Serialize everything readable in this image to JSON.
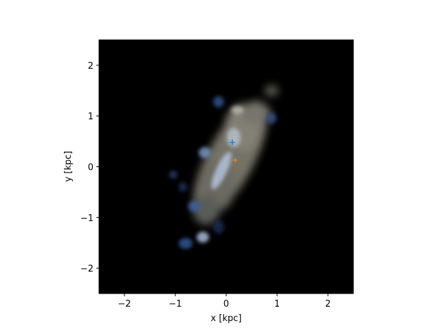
{
  "chart_data": {
    "type": "scatter",
    "title": "",
    "xlabel": "x [kpc]",
    "ylabel": "y [kpc]",
    "xlim": [
      -2.5,
      2.5
    ],
    "ylim": [
      -2.5,
      2.5
    ],
    "x_ticks": [
      -2,
      -1,
      0,
      1,
      2
    ],
    "y_ticks": [
      -2,
      -1,
      0,
      1,
      2
    ],
    "x_tick_labels": [
      "−2",
      "−1",
      "0",
      "1",
      "2"
    ],
    "y_tick_labels": [
      "−2",
      "−1",
      "0",
      "1",
      "2"
    ],
    "grid": false,
    "background_color": "#000000",
    "image": "galaxy gas/star density map (false-color RGB)",
    "markers": [
      {
        "x": 0.12,
        "y": 0.48,
        "marker": "+",
        "color": "#1f77b4"
      },
      {
        "x": 0.18,
        "y": 0.13,
        "marker": "+",
        "color": "#ff7f0e"
      }
    ],
    "series": []
  }
}
